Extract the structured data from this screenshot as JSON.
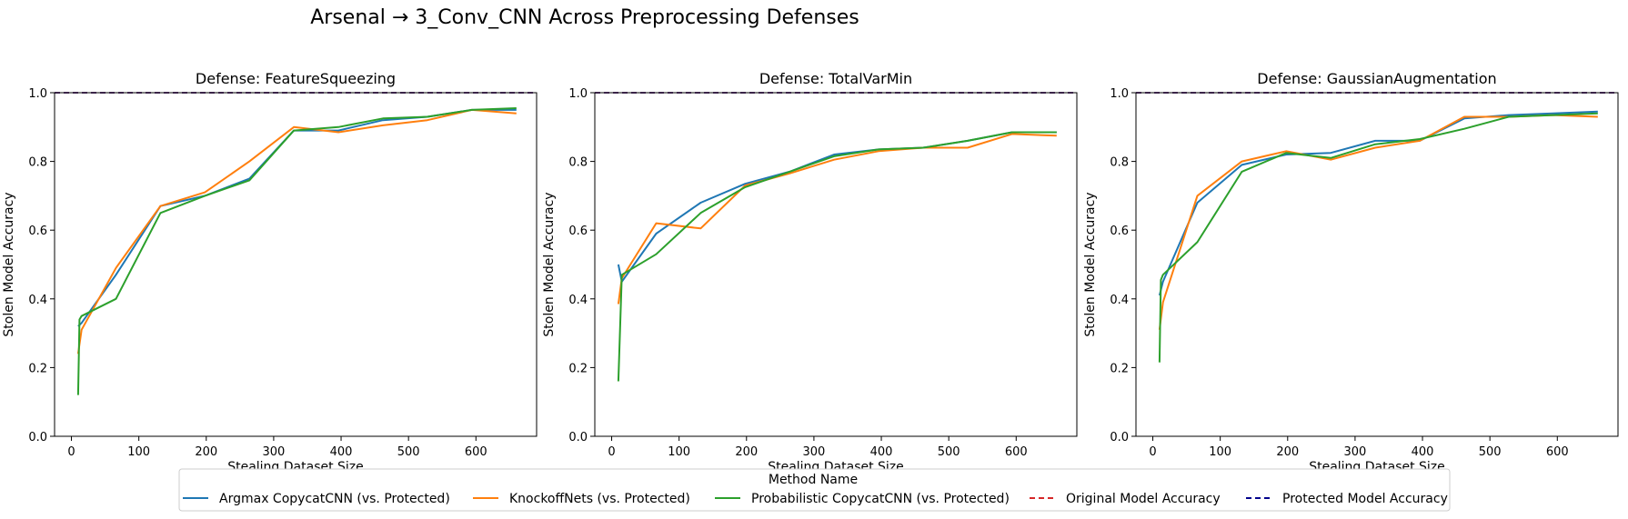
{
  "figure": {
    "title": "Arsenal → 3_Conv_CNN Across Preprocessing Defenses",
    "legend_title": "Method Name"
  },
  "legend": [
    {
      "label": "Argmax CopycatCNN (vs. Protected)",
      "color": "#1f77b4",
      "style": "solid"
    },
    {
      "label": "KnockoffNets (vs. Protected)",
      "color": "#ff7f0e",
      "style": "solid"
    },
    {
      "label": "Probabilistic CopycatCNN (vs. Protected)",
      "color": "#2ca02c",
      "style": "solid"
    },
    {
      "label": "Original Model Accuracy",
      "color": "#d62728",
      "style": "dashed"
    },
    {
      "label": "Protected Model Accuracy",
      "color": "#00008b",
      "style": "dashed"
    }
  ],
  "chart_data": [
    {
      "type": "line",
      "title": "Defense: FeatureSqueezing",
      "xlabel": "Stealing Dataset Size",
      "ylabel": "Stolen Model Accuracy",
      "xlim": [
        -25,
        690
      ],
      "ylim": [
        0,
        1
      ],
      "xticks": [
        0,
        100,
        200,
        300,
        400,
        500,
        600
      ],
      "yticks": [
        0.0,
        0.2,
        0.4,
        0.6,
        0.8,
        1.0
      ],
      "grid": false,
      "reference_lines": [
        {
          "name": "Original Model Accuracy",
          "y": 1.0,
          "color": "#d62728"
        },
        {
          "name": "Protected Model Accuracy",
          "y": 1.0,
          "color": "#00008b"
        }
      ],
      "series": [
        {
          "name": "Argmax CopycatCNN (vs. Protected)",
          "color": "#1f77b4",
          "x": [
            10,
            15,
            66,
            132,
            198,
            264,
            330,
            396,
            462,
            528,
            594,
            660
          ],
          "y": [
            0.32,
            0.33,
            0.47,
            0.67,
            0.7,
            0.75,
            0.89,
            0.89,
            0.92,
            0.93,
            0.95,
            0.95
          ]
        },
        {
          "name": "KnockoffNets (vs. Protected)",
          "color": "#ff7f0e",
          "x": [
            10,
            15,
            66,
            132,
            198,
            264,
            330,
            396,
            462,
            528,
            594,
            660
          ],
          "y": [
            0.24,
            0.31,
            0.49,
            0.67,
            0.71,
            0.8,
            0.9,
            0.885,
            0.905,
            0.92,
            0.95,
            0.94
          ]
        },
        {
          "name": "Probabilistic CopycatCNN (vs. Protected)",
          "color": "#2ca02c",
          "x": [
            10,
            12,
            15,
            66,
            132,
            198,
            264,
            330,
            396,
            462,
            528,
            594,
            660
          ],
          "y": [
            0.12,
            0.34,
            0.35,
            0.4,
            0.65,
            0.7,
            0.745,
            0.89,
            0.9,
            0.925,
            0.93,
            0.95,
            0.955
          ]
        }
      ]
    },
    {
      "type": "line",
      "title": "Defense: TotalVarMin",
      "xlabel": "Stealing Dataset Size",
      "ylabel": "Stolen Model Accuracy",
      "xlim": [
        -25,
        690
      ],
      "ylim": [
        0,
        1
      ],
      "xticks": [
        0,
        100,
        200,
        300,
        400,
        500,
        600
      ],
      "yticks": [
        0.0,
        0.2,
        0.4,
        0.6,
        0.8,
        1.0
      ],
      "grid": false,
      "reference_lines": [
        {
          "name": "Original Model Accuracy",
          "y": 1.0,
          "color": "#d62728"
        },
        {
          "name": "Protected Model Accuracy",
          "y": 1.0,
          "color": "#00008b"
        }
      ],
      "series": [
        {
          "name": "Argmax CopycatCNN (vs. Protected)",
          "color": "#1f77b4",
          "x": [
            10,
            15,
            66,
            132,
            198,
            264,
            330,
            396,
            462,
            528,
            594,
            660
          ],
          "y": [
            0.5,
            0.45,
            0.59,
            0.68,
            0.735,
            0.77,
            0.82,
            0.835,
            0.84,
            0.86,
            0.885,
            0.885
          ]
        },
        {
          "name": "KnockoffNets (vs. Protected)",
          "color": "#ff7f0e",
          "x": [
            10,
            15,
            66,
            132,
            198,
            264,
            330,
            396,
            462,
            528,
            594,
            660
          ],
          "y": [
            0.385,
            0.46,
            0.62,
            0.605,
            0.73,
            0.765,
            0.805,
            0.83,
            0.84,
            0.84,
            0.88,
            0.875
          ]
        },
        {
          "name": "Probabilistic CopycatCNN (vs. Protected)",
          "color": "#2ca02c",
          "x": [
            10,
            15,
            66,
            132,
            198,
            264,
            330,
            396,
            462,
            528,
            594,
            660
          ],
          "y": [
            0.16,
            0.47,
            0.53,
            0.65,
            0.725,
            0.77,
            0.815,
            0.835,
            0.84,
            0.86,
            0.885,
            0.885
          ]
        }
      ]
    },
    {
      "type": "line",
      "title": "Defense: GaussianAugmentation",
      "xlabel": "Stealing Dataset Size",
      "ylabel": "Stolen Model Accuracy",
      "xlim": [
        -25,
        690
      ],
      "ylim": [
        0,
        1
      ],
      "xticks": [
        0,
        100,
        200,
        300,
        400,
        500,
        600
      ],
      "yticks": [
        0.0,
        0.2,
        0.4,
        0.6,
        0.8,
        1.0
      ],
      "grid": false,
      "reference_lines": [
        {
          "name": "Original Model Accuracy",
          "y": 1.0,
          "color": "#d62728"
        },
        {
          "name": "Protected Model Accuracy",
          "y": 1.0,
          "color": "#00008b"
        }
      ],
      "series": [
        {
          "name": "Argmax CopycatCNN (vs. Protected)",
          "color": "#1f77b4",
          "x": [
            10,
            15,
            66,
            132,
            198,
            264,
            330,
            396,
            462,
            528,
            594,
            660
          ],
          "y": [
            0.41,
            0.45,
            0.68,
            0.79,
            0.82,
            0.825,
            0.86,
            0.86,
            0.925,
            0.935,
            0.94,
            0.945
          ]
        },
        {
          "name": "KnockoffNets (vs. Protected)",
          "color": "#ff7f0e",
          "x": [
            10,
            15,
            66,
            132,
            198,
            264,
            330,
            396,
            462,
            528,
            594,
            660
          ],
          "y": [
            0.31,
            0.39,
            0.7,
            0.8,
            0.83,
            0.805,
            0.84,
            0.86,
            0.93,
            0.93,
            0.935,
            0.93
          ]
        },
        {
          "name": "Probabilistic CopycatCNN (vs. Protected)",
          "color": "#2ca02c",
          "x": [
            10,
            12,
            15,
            66,
            132,
            198,
            264,
            330,
            396,
            462,
            528,
            594,
            660
          ],
          "y": [
            0.215,
            0.455,
            0.47,
            0.565,
            0.77,
            0.825,
            0.81,
            0.85,
            0.865,
            0.895,
            0.93,
            0.935,
            0.94
          ]
        }
      ]
    }
  ]
}
